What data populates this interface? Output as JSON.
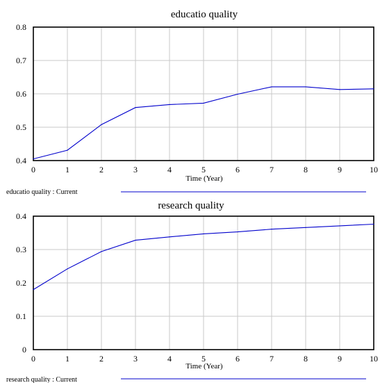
{
  "chart_data": [
    {
      "type": "line",
      "title": "educatio quality",
      "xlabel": "Time (Year)",
      "ylabel": "",
      "xlim": [
        0,
        10
      ],
      "ylim": [
        0.4,
        0.8
      ],
      "x_ticks": [
        "0",
        "1",
        "2",
        "3",
        "4",
        "5",
        "6",
        "7",
        "8",
        "9",
        "10"
      ],
      "y_ticks": [
        "0.4",
        "0.5",
        "0.6",
        "0.7",
        "0.8"
      ],
      "grid": true,
      "legend_position": "bottom",
      "series": [
        {
          "name": "educatio quality : Current",
          "color": "#0000cc",
          "x": [
            0,
            1,
            2,
            3,
            4,
            5,
            6,
            7,
            8,
            9,
            10
          ],
          "values": [
            0.405,
            0.431,
            0.508,
            0.559,
            0.568,
            0.572,
            0.599,
            0.621,
            0.621,
            0.613,
            0.615
          ]
        }
      ]
    },
    {
      "type": "line",
      "title": "research quality",
      "xlabel": "Time (Year)",
      "ylabel": "",
      "xlim": [
        0,
        10
      ],
      "ylim": [
        0,
        0.4
      ],
      "x_ticks": [
        "0",
        "1",
        "2",
        "3",
        "4",
        "5",
        "6",
        "7",
        "8",
        "9",
        "10"
      ],
      "y_ticks": [
        "0",
        "0.1",
        "0.2",
        "0.3",
        "0.4"
      ],
      "grid": true,
      "legend_position": "bottom",
      "series": [
        {
          "name": "research quality : Current",
          "color": "#0000cc",
          "x": [
            0,
            1,
            2,
            3,
            4,
            5,
            6,
            7,
            8,
            9,
            10
          ],
          "values": [
            0.18,
            0.242,
            0.294,
            0.328,
            0.338,
            0.347,
            0.353,
            0.361,
            0.366,
            0.371,
            0.376
          ]
        }
      ]
    }
  ]
}
